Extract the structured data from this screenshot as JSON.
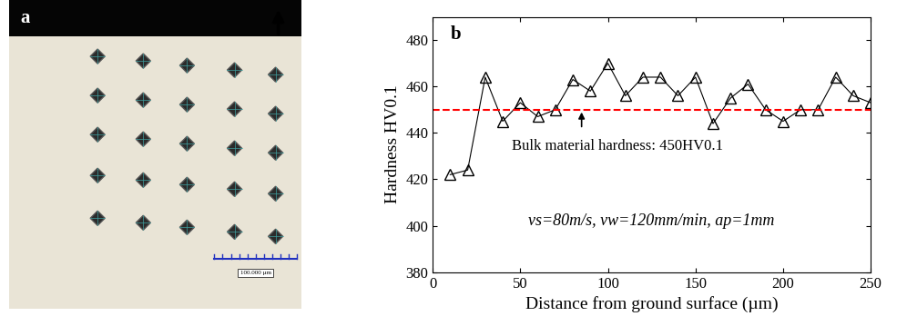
{
  "micrograph": {
    "label": "a",
    "scale_bar_text": "100.000 µm"
  },
  "chart_data": {
    "type": "line",
    "panel_label": "b",
    "x_label": "Distance from ground surface (µm)",
    "y_label": "Hardness HV0.1",
    "x": [
      10,
      20,
      30,
      40,
      50,
      60,
      70,
      80,
      90,
      100,
      110,
      120,
      130,
      140,
      150,
      160,
      170,
      180,
      190,
      200,
      210,
      220,
      230,
      240,
      250
    ],
    "series": [
      {
        "values": [
          422,
          424,
          464,
          445,
          453,
          447,
          450,
          463,
          458,
          470,
          456,
          464,
          464,
          456,
          464,
          444,
          455,
          461,
          450,
          445,
          450,
          450,
          464,
          456,
          453
        ],
        "color": "#000000",
        "marker": "triangle",
        "line_style": "solid"
      }
    ],
    "reference_line": {
      "value": 450,
      "label": "Bulk material hardness: 450HV0.1",
      "color": "#ff0000",
      "line_style": "dashed"
    },
    "annotations": [
      "vs=80m/s, vw=120mm/min, ap=1mm"
    ],
    "xlim": [
      0,
      250
    ],
    "xticks": [
      0,
      50,
      100,
      150,
      200,
      250
    ],
    "ylim": [
      380,
      490
    ],
    "yticks": [
      380,
      400,
      420,
      440,
      460,
      480
    ],
    "grid": false
  }
}
